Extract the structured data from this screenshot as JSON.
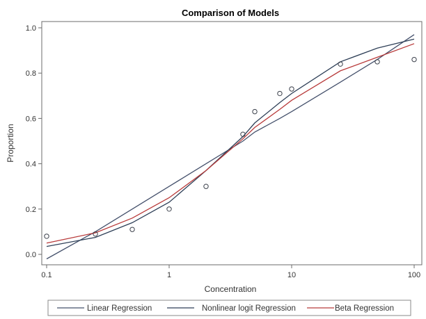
{
  "chart_data": {
    "type": "line",
    "title": "Comparison of Models",
    "xlabel": "Concentration",
    "ylabel": "Proportion",
    "xscale": "log",
    "xlim": [
      0.1,
      100
    ],
    "ylim": [
      0.0,
      1.0
    ],
    "xticks": [
      0.1,
      1,
      10,
      100
    ],
    "xtick_labels": [
      "0.1",
      "1",
      "10",
      "100"
    ],
    "yticks": [
      0.0,
      0.2,
      0.4,
      0.6,
      0.8,
      1.0
    ],
    "ytick_labels": [
      "0.0",
      "0.2",
      "0.4",
      "0.6",
      "0.8",
      "1.0"
    ],
    "grid": false,
    "legend_position": "bottom",
    "observed_points": {
      "x": [
        0.1,
        0.25,
        0.5,
        1,
        2,
        4,
        5,
        8,
        10,
        25,
        50,
        100
      ],
      "y": [
        0.08,
        0.09,
        0.11,
        0.2,
        0.3,
        0.53,
        0.63,
        0.71,
        0.73,
        0.84,
        0.85,
        0.86
      ]
    },
    "series": [
      {
        "name": "Linear Regression",
        "color": "#44506b",
        "x": [
          0.1,
          0.25,
          0.5,
          1,
          2,
          4,
          5,
          8,
          10,
          25,
          50,
          100
        ],
        "y": [
          -0.02,
          0.1,
          0.2,
          0.3,
          0.4,
          0.5,
          0.54,
          0.6,
          0.63,
          0.76,
          0.86,
          0.97
        ]
      },
      {
        "name": "Nonlinear logit Regression",
        "color": "#2e3f57",
        "x": [
          0.1,
          0.25,
          0.5,
          1,
          2,
          4,
          5,
          8,
          10,
          25,
          50,
          100
        ],
        "y": [
          0.035,
          0.075,
          0.14,
          0.23,
          0.37,
          0.52,
          0.58,
          0.67,
          0.71,
          0.85,
          0.91,
          0.95
        ]
      },
      {
        "name": "Beta Regression",
        "color": "#b83a3a",
        "x": [
          0.1,
          0.25,
          0.5,
          1,
          2,
          4,
          5,
          8,
          10,
          25,
          50,
          100
        ],
        "y": [
          0.05,
          0.095,
          0.16,
          0.25,
          0.37,
          0.51,
          0.56,
          0.64,
          0.68,
          0.81,
          0.87,
          0.93
        ]
      }
    ]
  }
}
